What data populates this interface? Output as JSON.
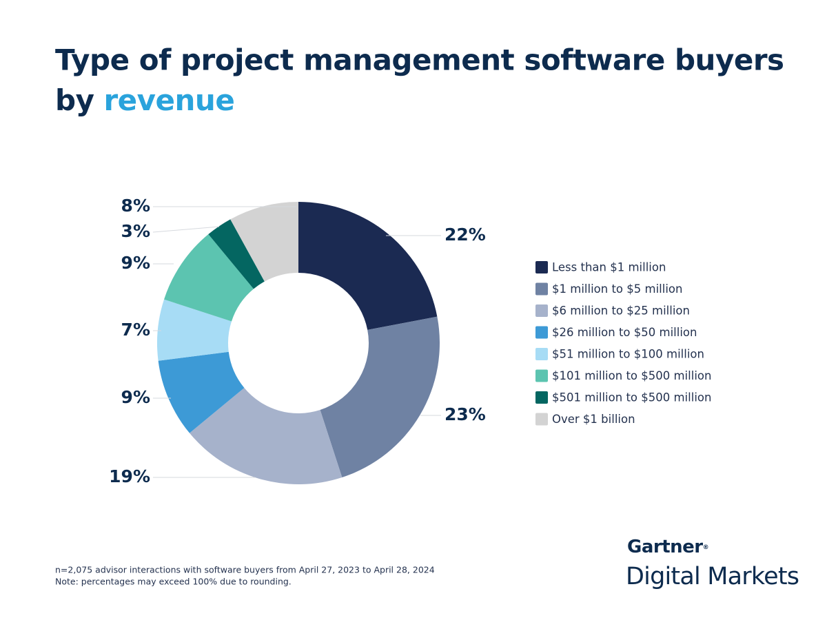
{
  "chart_data": {
    "type": "donut",
    "title": [
      "Type of project management software buyers",
      "by"
    ],
    "title_highlight": "revenue",
    "categories": [
      "Less than $1 million",
      "$1 million to $5 million",
      "$6 million to $25 million",
      "$26 million to $50 million",
      "$51 million to $100 million",
      "$101 million to $500 million",
      "$501 million to $500 million",
      "Over $1 billion"
    ],
    "values": [
      22,
      23,
      19,
      9,
      7,
      9,
      3,
      8
    ],
    "value_labels": [
      "22%",
      "23%",
      "19%",
      "9%",
      "7%",
      "9%",
      "3%",
      "8%"
    ],
    "colors": [
      "#1b2a52",
      "#6f82a3",
      "#a6b2cb",
      "#3d9ad6",
      "#a7dcf5",
      "#5cc4b0",
      "#046661",
      "#d3d3d3"
    ],
    "legend": "right",
    "notes": [
      "n=2,075 advisor interactions with software buyers from April 27, 2023 to April 28, 2024",
      "Note: percentages may exceed 100% due to rounding."
    ],
    "brand": "Gartner",
    "brand_mark": "®",
    "brand_sub": "Digital Markets"
  }
}
